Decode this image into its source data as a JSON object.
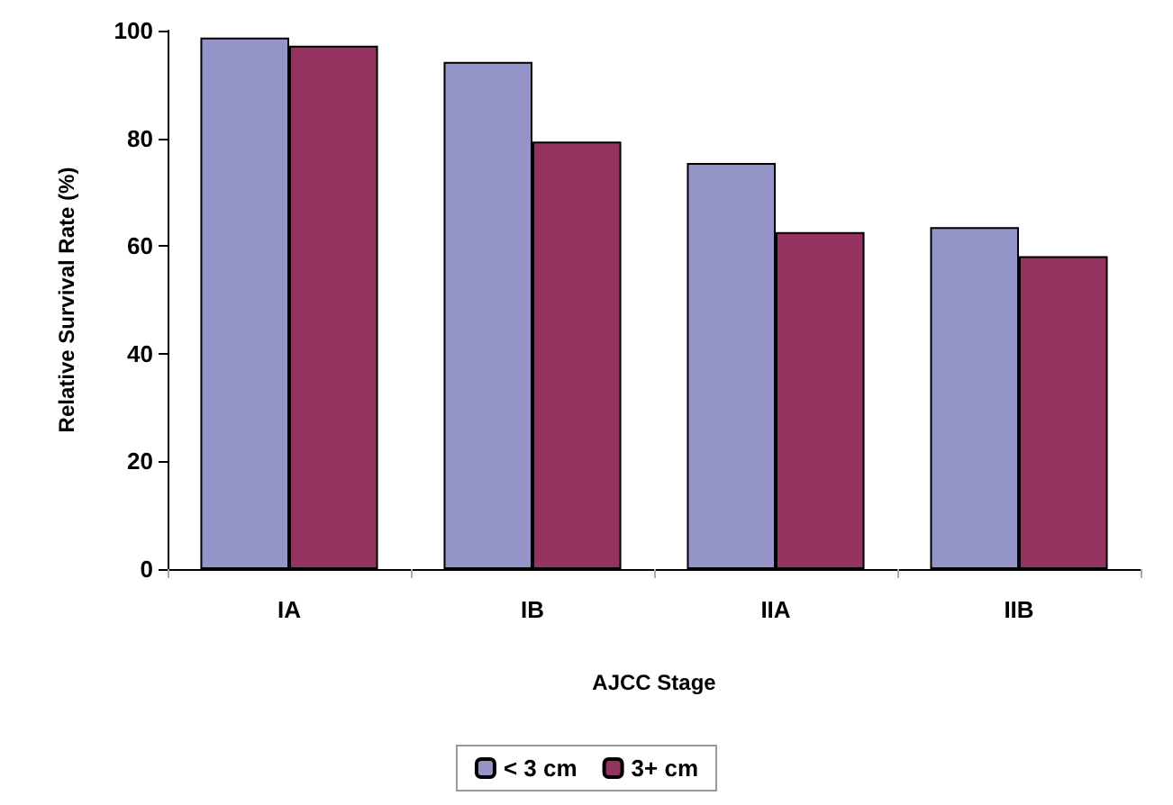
{
  "chart_data": {
    "type": "bar",
    "xlabel": "AJCC Stage",
    "ylabel": "Relative Survival Rate (%)",
    "categories": [
      "IA",
      "IB",
      "IIA",
      "IIB"
    ],
    "series": [
      {
        "name": "< 3 cm",
        "color": "#9494c8",
        "values": [
          98.7,
          94.2,
          75.4,
          63.5
        ]
      },
      {
        "name": "3+ cm",
        "color": "#943260",
        "values": [
          97.2,
          79.4,
          62.6,
          58.1
        ]
      }
    ],
    "ylim": [
      0,
      100
    ],
    "yticks": [
      0,
      20,
      40,
      60,
      80,
      100
    ],
    "grid": false,
    "legend": "bottom"
  }
}
